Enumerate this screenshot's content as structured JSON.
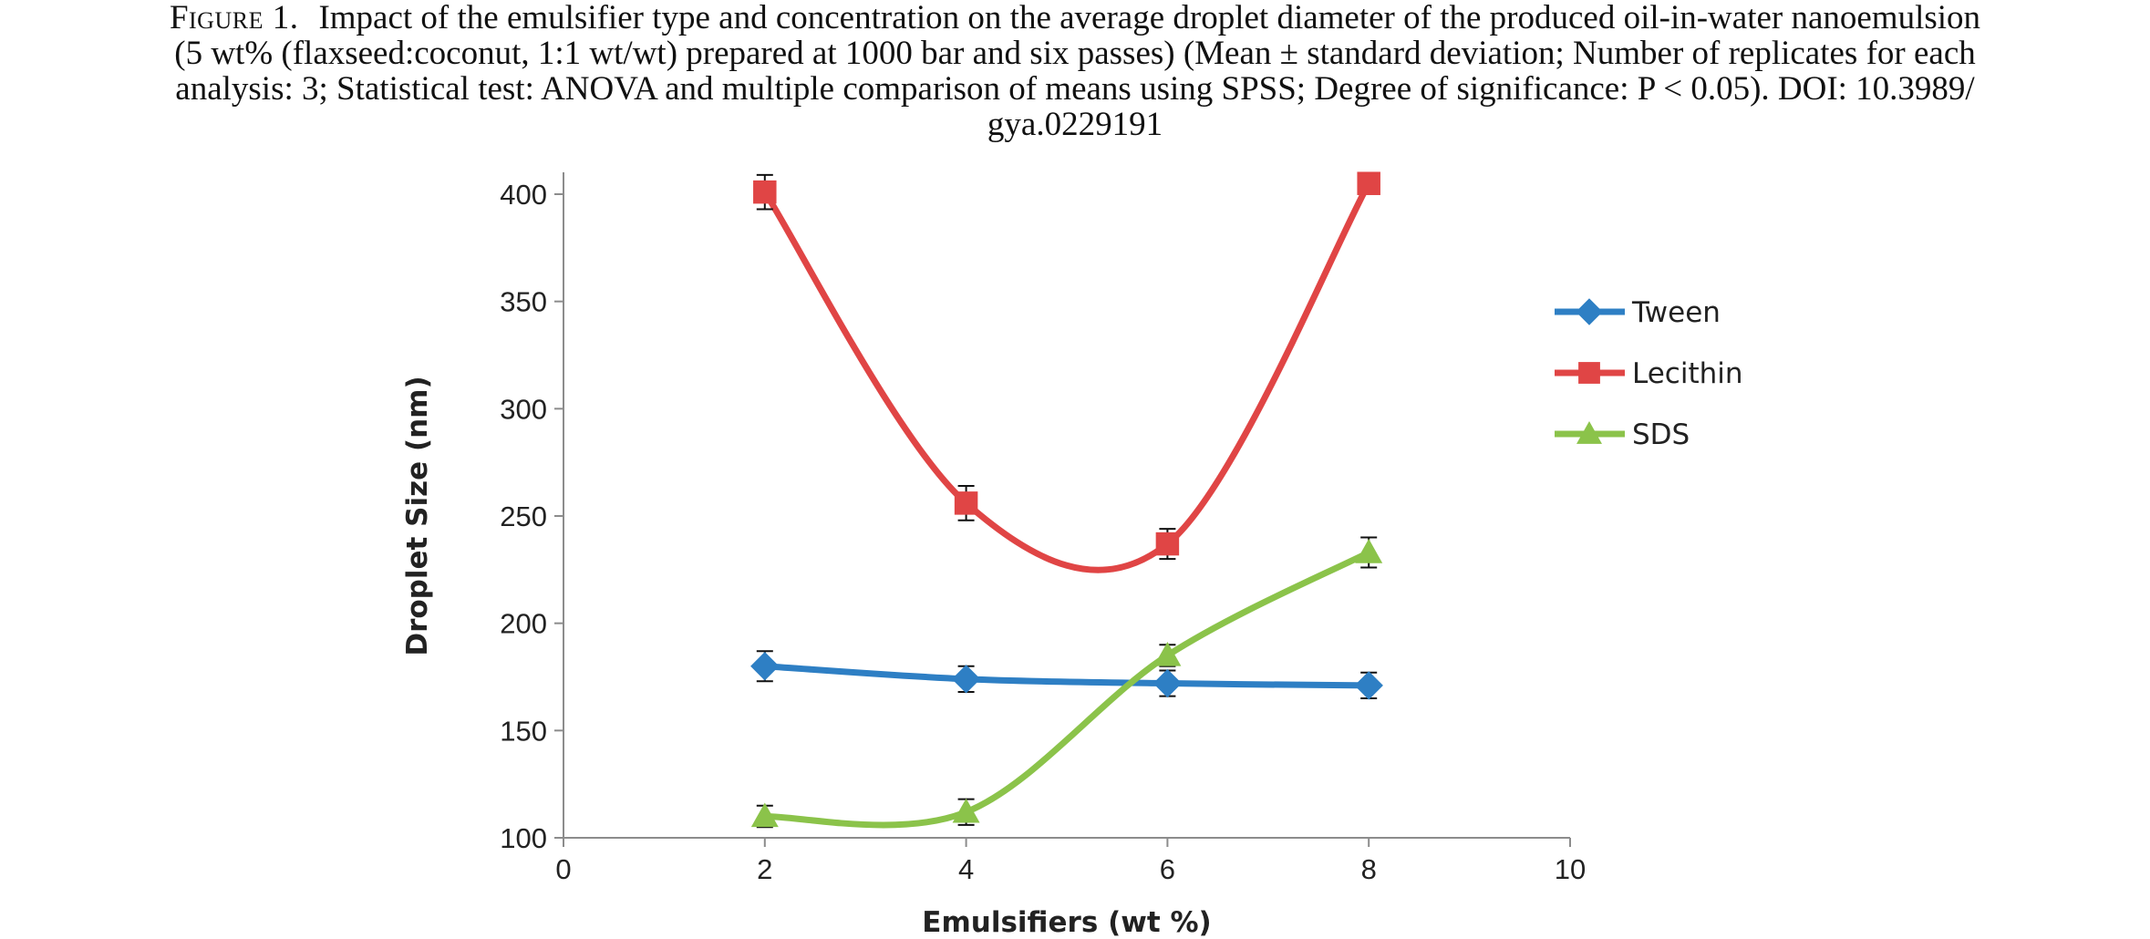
{
  "caption": {
    "label": "Figure 1.",
    "lines": [
      "Impact of the emulsifier type and concentration on the average droplet diameter of the produced oil-in-water nanoemulsion",
      "(5 wt% (flaxseed:coconut, 1:1 wt/wt) prepared at 1000 bar and six passes) (Mean ± standard deviation; Number of replicates for each",
      "analysis: 3; Statistical test: ANOVA and multiple comparison of means using SPSS; Degree of significance: P < 0.05). DOI: 10.3989/",
      "gya.0229191"
    ]
  },
  "chart_data": {
    "type": "line",
    "title": "",
    "xlabel": "Emulsifiers (wt %)",
    "ylabel": "Droplet Size (nm)",
    "xlim": [
      0,
      10
    ],
    "ylim": [
      100,
      400
    ],
    "x_ticks": [
      0,
      2,
      4,
      6,
      8,
      10
    ],
    "y_ticks": [
      100,
      150,
      200,
      250,
      300,
      350,
      400
    ],
    "grid": false,
    "smoothed": true,
    "legend_position": "right",
    "x": [
      2,
      4,
      6,
      8
    ],
    "series": [
      {
        "name": "Tween",
        "color": "#2E7FC4",
        "marker": "diamond",
        "values": [
          180,
          174,
          172,
          171
        ],
        "errors": [
          7,
          6,
          6,
          6
        ]
      },
      {
        "name": "Lecithin",
        "color": "#E04545",
        "marker": "square",
        "values": [
          401,
          256,
          237,
          405
        ],
        "errors": [
          8,
          8,
          7,
          3
        ]
      },
      {
        "name": "SDS",
        "color": "#8BC34A",
        "marker": "triangle",
        "values": [
          110,
          112,
          185,
          233
        ],
        "errors": [
          5,
          6,
          5,
          7
        ]
      }
    ]
  }
}
